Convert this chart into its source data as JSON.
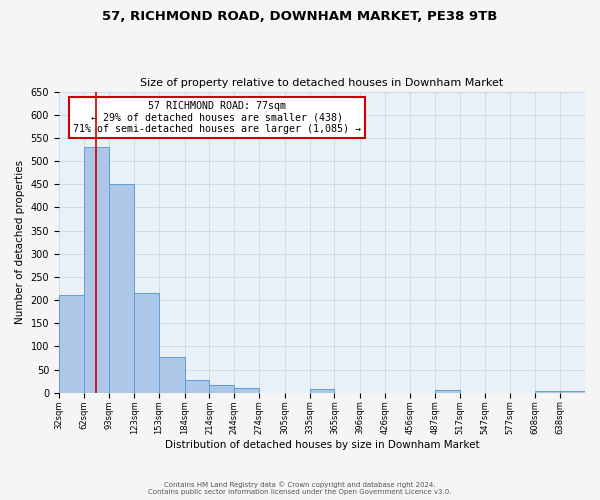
{
  "title": "57, RICHMOND ROAD, DOWNHAM MARKET, PE38 9TB",
  "subtitle": "Size of property relative to detached houses in Downham Market",
  "xlabel": "Distribution of detached houses by size in Downham Market",
  "ylabel": "Number of detached properties",
  "bin_labels": [
    "32sqm",
    "62sqm",
    "93sqm",
    "123sqm",
    "153sqm",
    "184sqm",
    "214sqm",
    "244sqm",
    "274sqm",
    "305sqm",
    "335sqm",
    "365sqm",
    "396sqm",
    "426sqm",
    "456sqm",
    "487sqm",
    "517sqm",
    "547sqm",
    "577sqm",
    "608sqm",
    "638sqm"
  ],
  "bar_heights": [
    210,
    530,
    450,
    215,
    78,
    27,
    17,
    10,
    0,
    0,
    9,
    0,
    0,
    0,
    0,
    5,
    0,
    0,
    0,
    4,
    4
  ],
  "bar_color": "#aec6e8",
  "bar_edge_color": "#5a9fd4",
  "vline_x": 77,
  "vline_color": "#cc0000",
  "annotation_box_text": "57 RICHMOND ROAD: 77sqm\n← 29% of detached houses are smaller (438)\n71% of semi-detached houses are larger (1,085) →",
  "annotation_box_edge_color": "#cc0000",
  "ylim": [
    0,
    650
  ],
  "yticks": [
    0,
    50,
    100,
    150,
    200,
    250,
    300,
    350,
    400,
    450,
    500,
    550,
    600,
    650
  ],
  "grid_color": "#c8d8e8",
  "bg_color": "#eaf0f8",
  "fig_bg_color": "#f5f5f5",
  "footer_line1": "Contains HM Land Registry data © Crown copyright and database right 2024.",
  "footer_line2": "Contains public sector information licensed under the Open Government Licence v3.0.",
  "bin_edges": [
    32,
    62,
    93,
    123,
    153,
    184,
    214,
    244,
    274,
    305,
    335,
    365,
    396,
    426,
    456,
    487,
    517,
    547,
    577,
    608,
    638,
    668
  ]
}
